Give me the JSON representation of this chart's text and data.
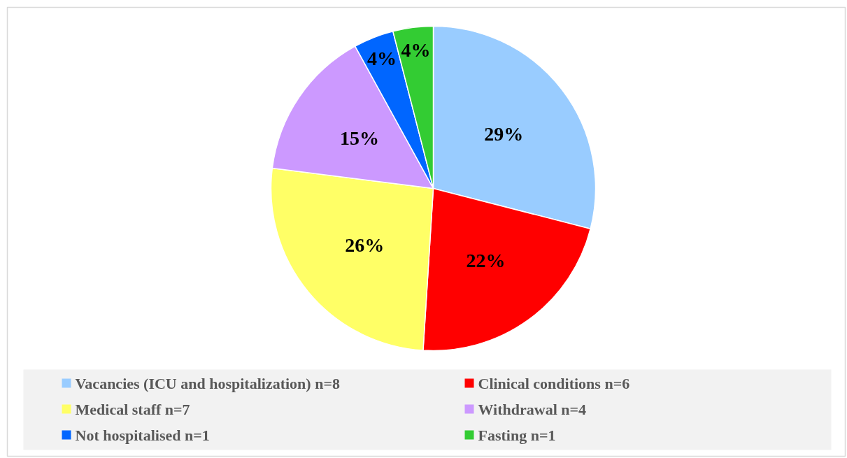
{
  "chart_data": {
    "type": "pie",
    "categories": [
      "Vacancies (ICU and hospitalization) n=8",
      "Clinical conditions n=6",
      "Medical staff n=7",
      "Withdrawal n=4",
      "Not hospitalised n=1",
      "Fasting n=1"
    ],
    "values": [
      29,
      22,
      26,
      15,
      4,
      4
    ],
    "colors": [
      "#99ccff",
      "#ff0000",
      "#ffff66",
      "#cc99ff",
      "#0066ff",
      "#33cc33"
    ],
    "value_labels": [
      "29%",
      "22%",
      "26%",
      "15%",
      "4%",
      "4%"
    ],
    "legend": "bottom"
  }
}
